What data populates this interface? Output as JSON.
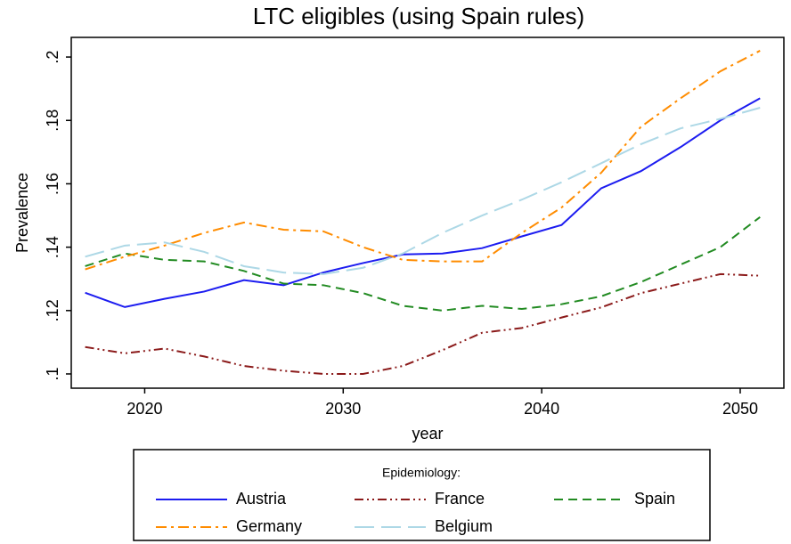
{
  "chart_data": {
    "type": "line",
    "title": "LTC eligibles (using Spain rules)",
    "x_label": "year",
    "y_label": "Prevalence",
    "x": [
      2017,
      2019,
      2021,
      2023,
      2025,
      2027,
      2029,
      2031,
      2033,
      2035,
      2037,
      2039,
      2041,
      2043,
      2045,
      2047,
      2049,
      2051
    ],
    "xlim": [
      2016.3,
      2052.2
    ],
    "xticks": [
      2020,
      2030,
      2040,
      2050
    ],
    "ylim": [
      0.0955,
      0.2062
    ],
    "yticks": [
      {
        "value": 0.1,
        "label": ".1"
      },
      {
        "value": 0.12,
        "label": ".12"
      },
      {
        "value": 0.14,
        "label": ".14"
      },
      {
        "value": 0.16,
        "label": ".16"
      },
      {
        "value": 0.18,
        "label": ".18"
      },
      {
        "value": 0.2,
        "label": ".2"
      }
    ],
    "legend_title": "Epidemiology:",
    "legend_position": "bottom",
    "series": [
      {
        "name": "Austria",
        "color": "#1c1cf0",
        "dash": "solid",
        "values": [
          0.1256,
          0.1211,
          0.1237,
          0.126,
          0.1296,
          0.128,
          0.132,
          0.135,
          0.1377,
          0.138,
          0.1397,
          0.1434,
          0.147,
          0.1586,
          0.164,
          0.1716,
          0.18,
          0.187
        ]
      },
      {
        "name": "France",
        "color": "#8b1a1a",
        "dash": "dash-dot-dot",
        "values": [
          0.1085,
          0.1065,
          0.108,
          0.1055,
          0.1025,
          0.101,
          0.1,
          0.1,
          0.1025,
          0.1075,
          0.113,
          0.1145,
          0.1178,
          0.121,
          0.1255,
          0.1285,
          0.1315,
          0.131
        ]
      },
      {
        "name": "Spain",
        "color": "#228b22",
        "dash": "dash",
        "values": [
          0.134,
          0.138,
          0.136,
          0.1355,
          0.1325,
          0.1285,
          0.128,
          0.1255,
          0.1215,
          0.12,
          0.1215,
          0.1205,
          0.122,
          0.1245,
          0.129,
          0.1345,
          0.14,
          0.1495
        ]
      },
      {
        "name": "Germany",
        "color": "#ff8c00",
        "dash": "dash-dot",
        "values": [
          0.133,
          0.137,
          0.1405,
          0.1445,
          0.1478,
          0.1455,
          0.145,
          0.14,
          0.136,
          0.1355,
          0.1355,
          0.1445,
          0.1525,
          0.1635,
          0.178,
          0.187,
          0.1955,
          0.202
        ]
      },
      {
        "name": "Belgium",
        "color": "#add8e6",
        "dash": "long-dash",
        "values": [
          0.137,
          0.1405,
          0.1415,
          0.1385,
          0.134,
          0.132,
          0.1315,
          0.1335,
          0.138,
          0.1445,
          0.15,
          0.155,
          0.1605,
          0.1665,
          0.1725,
          0.1775,
          0.1805,
          0.184
        ]
      }
    ]
  }
}
